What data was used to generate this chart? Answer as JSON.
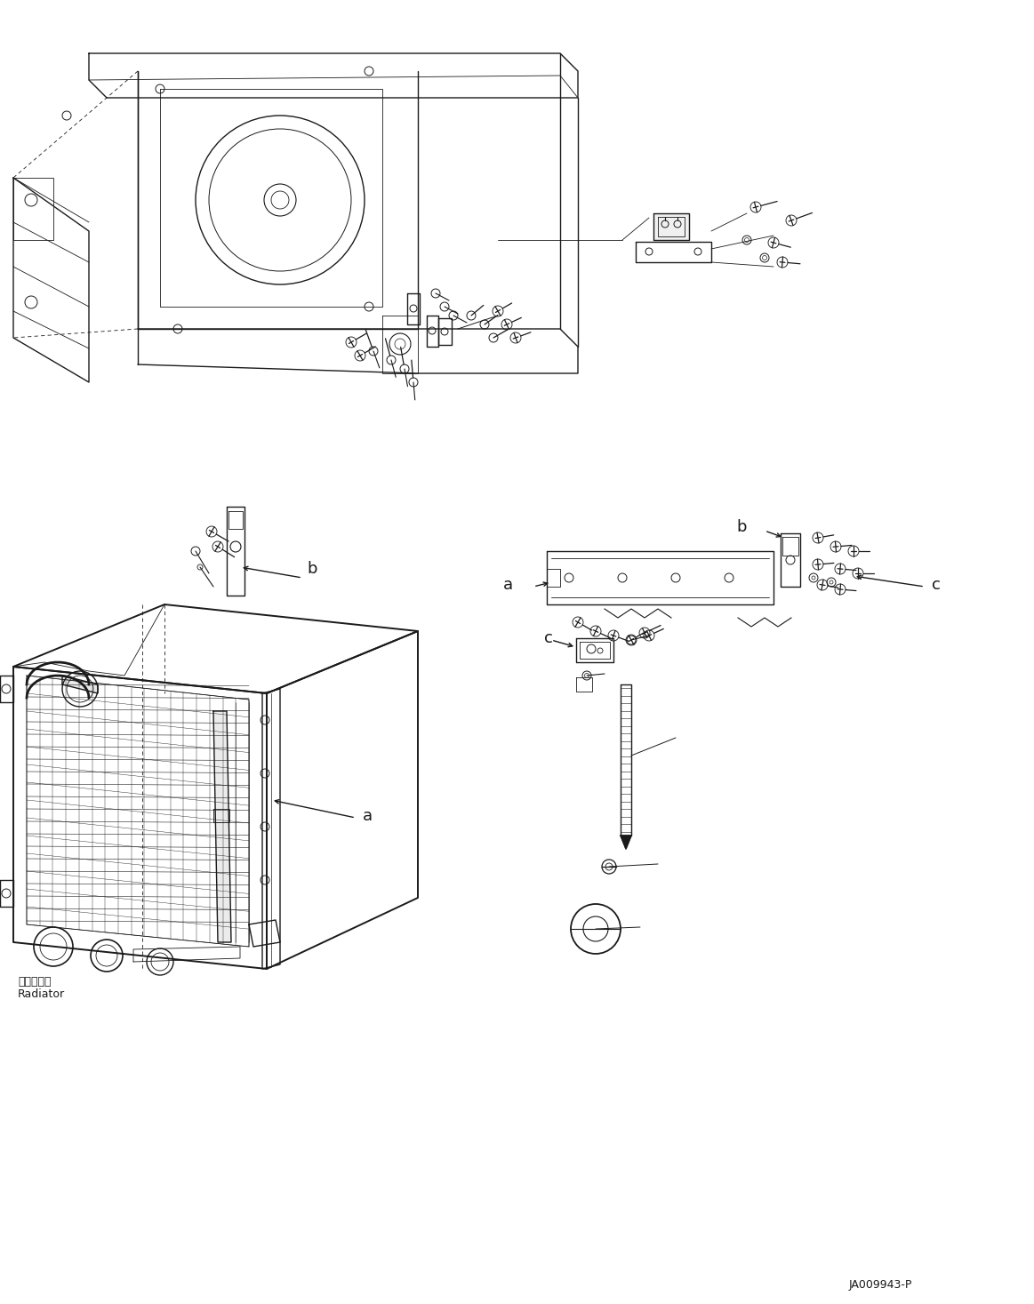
{
  "bg_color": "#ffffff",
  "line_color": "#1a1a1a",
  "fig_width": 11.63,
  "fig_height": 14.67,
  "dpi": 100,
  "part_code": "JA009943-P",
  "radiator_label_jp": "ラジエータ",
  "radiator_label_en": "Radiator",
  "label_a1": "a",
  "label_b1": "b",
  "label_a2": "a",
  "label_b2": "b",
  "label_c1": "c",
  "label_c2": "c"
}
